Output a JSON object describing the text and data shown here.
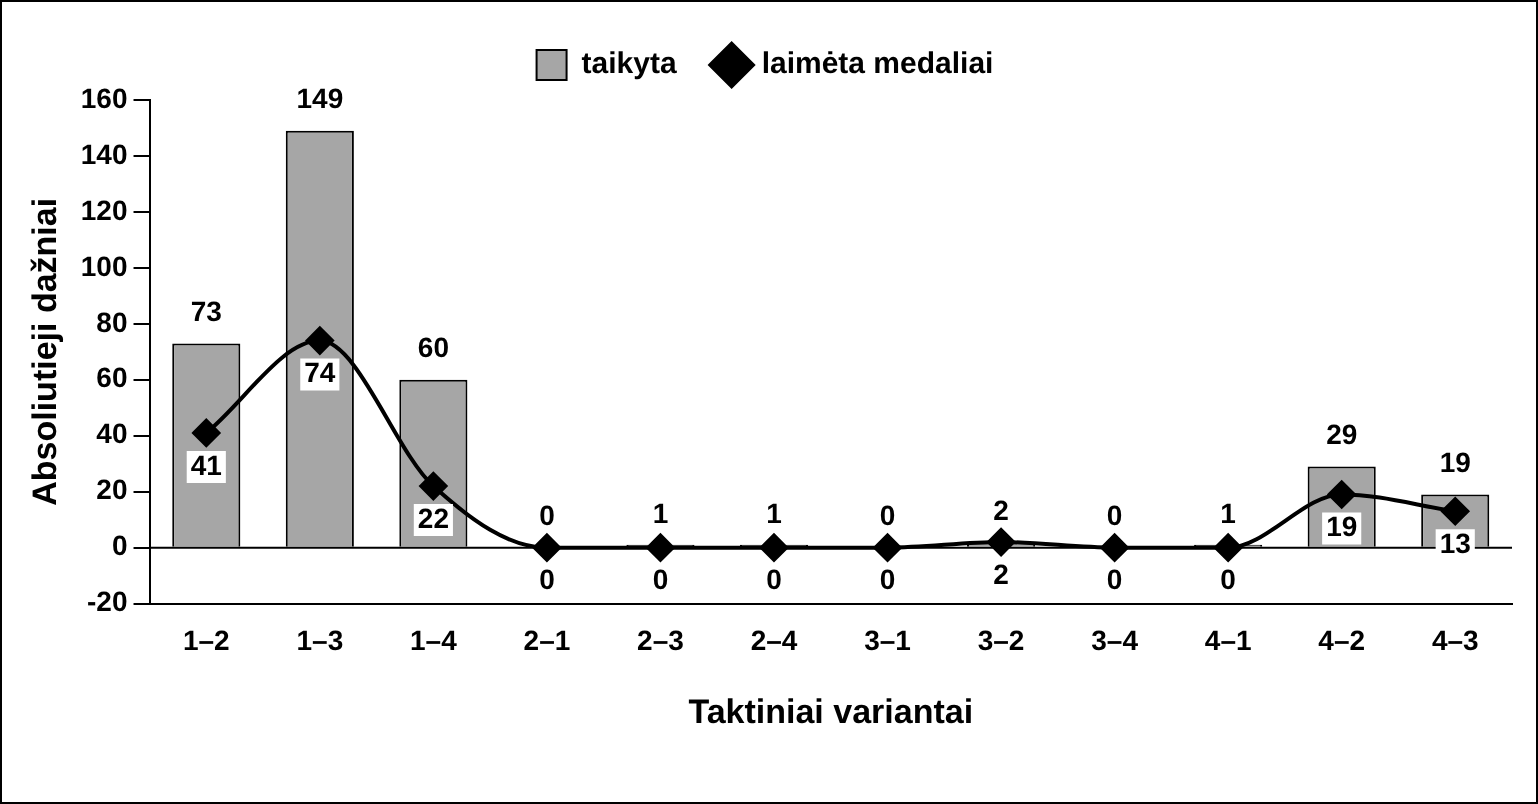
{
  "chart_data": {
    "type": "bar",
    "xlabel": "Taktiniai variantai",
    "ylabel": "Absoliutieji dažniai",
    "categories": [
      "1–2",
      "1–3",
      "1–4",
      "2–1",
      "2–3",
      "2–4",
      "3–1",
      "3–2",
      "3–4",
      "4–1",
      "4–2",
      "4–3"
    ],
    "series": [
      {
        "name": "taikyta",
        "color": "#a6a6a6",
        "values": [
          73,
          149,
          60,
          0,
          1,
          1,
          0,
          2,
          0,
          1,
          29,
          19
        ]
      },
      {
        "name": "laimėta medaliai",
        "type": "line",
        "color": "#000000",
        "marker": "diamond",
        "values": [
          41,
          74,
          22,
          0,
          0,
          0,
          0,
          2,
          0,
          0,
          19,
          13
        ]
      }
    ],
    "ylim": [
      -20,
      160
    ],
    "yticks": [
      -20,
      0,
      20,
      40,
      60,
      80,
      100,
      120,
      140,
      160
    ],
    "ref_lines": [
      {
        "axis": "y",
        "value": 0,
        "color": "#000000"
      }
    ],
    "grid": false,
    "legend": "top",
    "data_labels": true
  }
}
